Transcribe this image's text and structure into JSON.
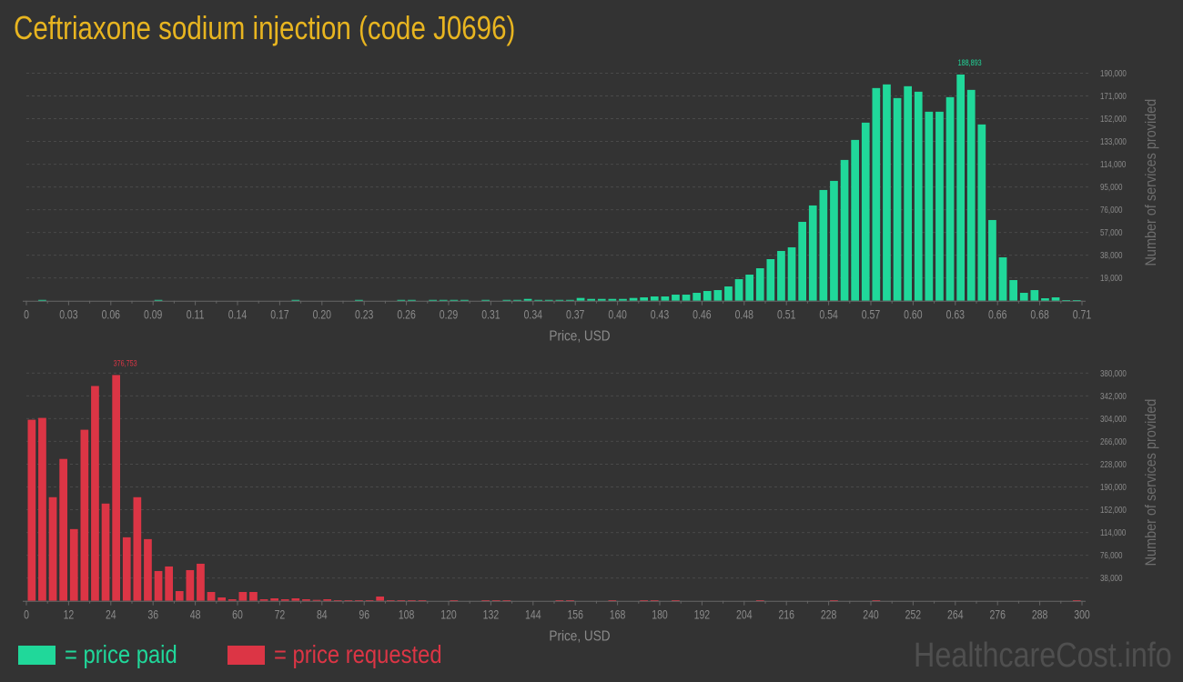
{
  "title": "Ceftriaxone sodium injection (code J0696)",
  "colors": {
    "background": "#333333",
    "title": "#e8b520",
    "paid": "#20d89a",
    "requested": "#dc3545",
    "axis_text": "#8a8a8a",
    "grid": "#4a4a4a"
  },
  "legend": {
    "paid_label": "= price paid",
    "requested_label": "= price requested"
  },
  "watermark": "HealthcareCost.info",
  "chart_data": [
    {
      "type": "bar",
      "series_key": "paid",
      "xlabel": "Price, USD",
      "ylabel": "Number of services provided",
      "xlim": [
        0,
        0.71
      ],
      "ylim": [
        0,
        190000
      ],
      "x_ticks": [
        "0",
        "0.03",
        "0.06",
        "0.09",
        "0.11",
        "0.14",
        "0.17",
        "0.20",
        "0.23",
        "0.26",
        "0.29",
        "0.31",
        "0.34",
        "0.37",
        "0.40",
        "0.43",
        "0.46",
        "0.48",
        "0.51",
        "0.54",
        "0.57",
        "0.60",
        "0.63",
        "0.66",
        "0.68",
        "0.71"
      ],
      "y_ticks": [
        "19,000",
        "38,000",
        "57,000",
        "76,000",
        "95,000",
        "114,000",
        "133,000",
        "152,000",
        "171,000",
        "190,000"
      ],
      "y_tick_values": [
        19000,
        38000,
        57000,
        76000,
        95000,
        114000,
        133000,
        152000,
        171000,
        190000
      ],
      "grid": true,
      "peak_label": "188,893",
      "values": [
        0,
        700,
        0,
        0,
        0,
        0,
        0,
        0,
        0,
        0,
        0,
        0,
        700,
        0,
        0,
        0,
        0,
        0,
        0,
        0,
        0,
        0,
        0,
        0,
        0,
        700,
        0,
        0,
        0,
        0,
        0,
        700,
        0,
        0,
        0,
        700,
        700,
        0,
        700,
        700,
        700,
        700,
        0,
        700,
        0,
        700,
        700,
        1500,
        700,
        700,
        700,
        700,
        2300,
        1500,
        1500,
        1500,
        1500,
        2280,
        2790,
        3550,
        3550,
        5070,
        5070,
        6590,
        8110,
        8870,
        11910,
        17990,
        21790,
        27110,
        34710,
        41550,
        44590,
        65870,
        79550,
        92470,
        100070,
        117550,
        134270,
        148710,
        177590,
        180630,
        169230,
        179110,
        174550,
        157830,
        157830,
        169990,
        188893,
        176070,
        147190,
        67390,
        36230,
        17230,
        6590,
        8870,
        2030,
        2790,
        510,
        510
      ]
    },
    {
      "type": "bar",
      "series_key": "requested",
      "xlabel": "Price, USD",
      "ylabel": "Number of services provided",
      "xlim": [
        0,
        300
      ],
      "ylim": [
        0,
        380000
      ],
      "x_ticks": [
        "0",
        "12",
        "24",
        "36",
        "48",
        "60",
        "72",
        "84",
        "96",
        "108",
        "120",
        "132",
        "144",
        "156",
        "168",
        "180",
        "192",
        "204",
        "216",
        "228",
        "240",
        "252",
        "264",
        "276",
        "288",
        "300"
      ],
      "y_ticks": [
        "38,000",
        "76,000",
        "114,000",
        "152,000",
        "190,000",
        "228,000",
        "266,000",
        "304,000",
        "342,000",
        "380,000"
      ],
      "y_tick_values": [
        38000,
        76000,
        114000,
        152000,
        190000,
        228000,
        266000,
        304000,
        342000,
        380000
      ],
      "grid": true,
      "peak_label": "376,753",
      "values": [
        302172,
        305214,
        172887,
        236769,
        119652,
        285441,
        358449,
        162240,
        376753,
        105963,
        172887,
        102921,
        49686,
        57291,
        16224,
        51207,
        61854,
        14703,
        5577,
        2535,
        14703,
        14703,
        2535,
        4056,
        2535,
        4056,
        2535,
        1521,
        2535,
        1014,
        1014,
        1014,
        1014,
        7098,
        1014,
        1014,
        1014,
        1014,
        0,
        0,
        1014,
        0,
        0,
        1014,
        1014,
        1014,
        0,
        0,
        0,
        0,
        1014,
        1014,
        0,
        0,
        0,
        1014,
        0,
        0,
        1014,
        1014,
        0,
        1014,
        0,
        0,
        0,
        0,
        0,
        0,
        0,
        1014,
        0,
        0,
        0,
        0,
        0,
        0,
        1014,
        0,
        0,
        0,
        1014,
        0,
        0,
        0,
        0,
        0,
        0,
        0,
        0,
        0,
        0,
        0,
        0,
        0,
        0,
        0,
        0,
        0,
        0,
        1014
      ]
    }
  ]
}
